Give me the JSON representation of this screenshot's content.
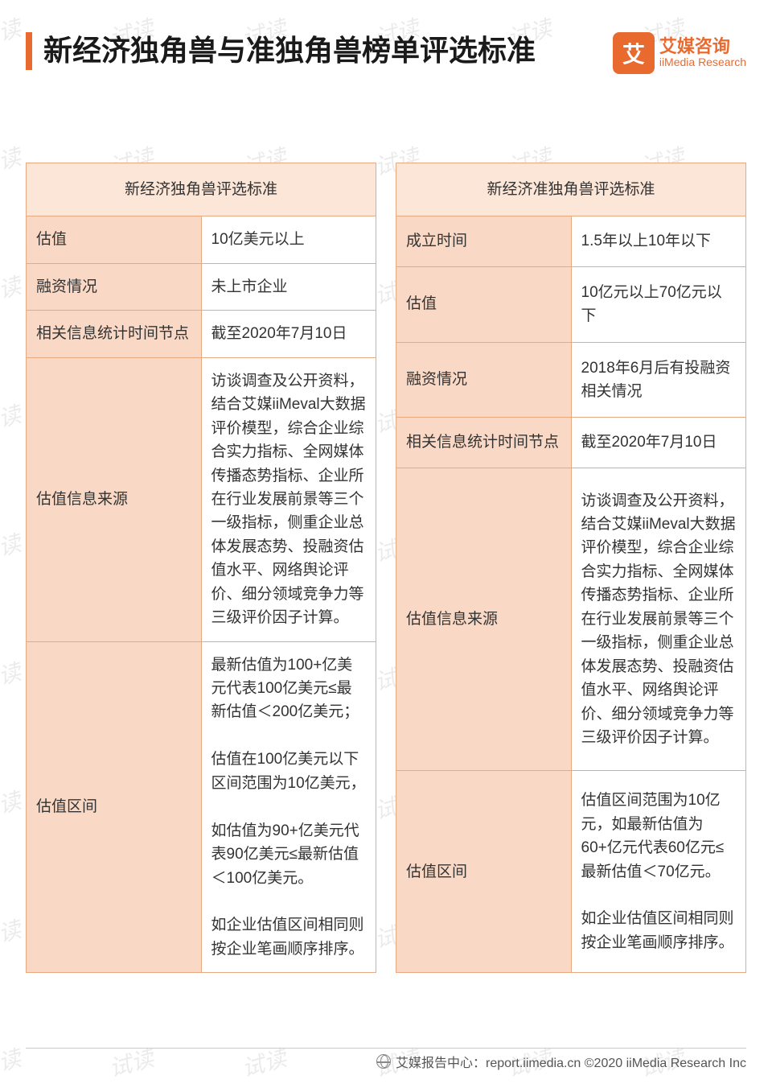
{
  "page": {
    "title": "新经济独角兽与准独角兽榜单评选标准",
    "watermark_text": "试读",
    "accent_color": "#e96a2f",
    "table_border_color": "#e8a980",
    "header_bg": "#fbe6d8",
    "label_bg": "#f9d9c5"
  },
  "logo": {
    "badge_text": "艾",
    "cn": "艾媒咨询",
    "en": "iiMedia Research"
  },
  "left_table": {
    "header": "新经济独角兽评选标准",
    "rows": [
      {
        "label": "估值",
        "value": "10亿美元以上"
      },
      {
        "label": "融资情况",
        "value": "未上市企业"
      },
      {
        "label": "相关信息统计时间节点",
        "value": "截至2020年7月10日"
      },
      {
        "label": "估值信息来源",
        "value": "访谈调查及公开资料，结合艾媒iiMeval大数据评价模型，综合企业综合实力指标、全网媒体传播态势指标、企业所在行业发展前景等三个一级指标，侧重企业总体发展态势、投融资估值水平、网络舆论评价、细分领域竞争力等三级评价因子计算。"
      },
      {
        "label": "估值区间",
        "value": "最新估值为100+亿美元代表100亿美元≤最新估值＜200亿美元；\n\n估值在100亿美元以下区间范围为10亿美元，\n\n如估值为90+亿美元代表90亿美元≤最新估值＜100亿美元。\n\n如企业估值区间相同则按企业笔画顺序排序。"
      }
    ]
  },
  "right_table": {
    "header": "新经济准独角兽评选标准",
    "rows": [
      {
        "label": "成立时间",
        "value": "1.5年以上10年以下"
      },
      {
        "label": "估值",
        "value": "10亿元以上70亿元以下"
      },
      {
        "label": "融资情况",
        "value": "2018年6月后有投融资相关情况"
      },
      {
        "label": "相关信息统计时间节点",
        "value": "截至2020年7月10日"
      },
      {
        "label": "估值信息来源",
        "value": "访谈调查及公开资料，结合艾媒iiMeval大数据评价模型，综合企业综合实力指标、全网媒体传播态势指标、企业所在行业发展前景等三个一级指标，侧重企业总体发展态势、投融资估值水平、网络舆论评价、细分领域竞争力等三级评价因子计算。"
      },
      {
        "label": "估值区间",
        "value": "估值区间范围为10亿元，如最新估值为60+亿元代表60亿元≤最新估值＜70亿元。\n\n如企业估值区间相同则按企业笔画顺序排序。"
      }
    ]
  },
  "footer": {
    "text": "艾媒报告中心：report.iimedia.cn  ©2020  iiMedia Research Inc"
  }
}
